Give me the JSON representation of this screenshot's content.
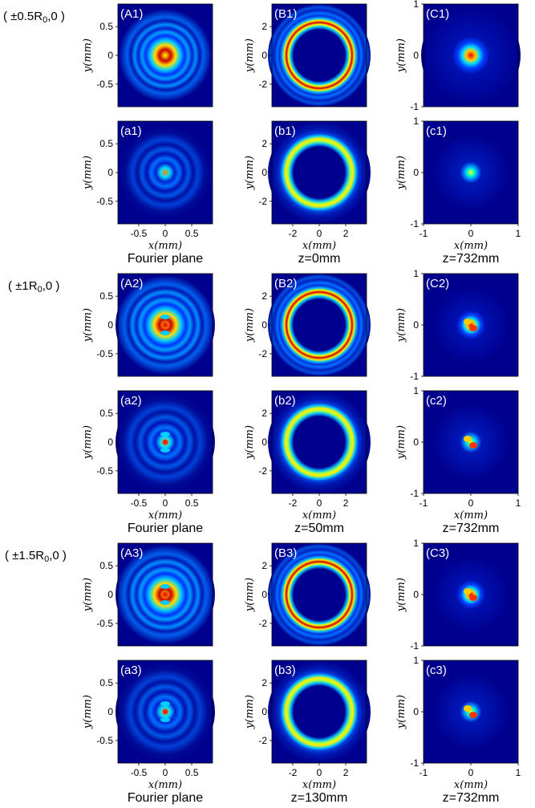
{
  "row_groups": [
    {
      "parameter": "( ±0.5R",
      "parameter_sub": "0",
      "parameter_tail": ",0 )",
      "captions": [
        "Fourier plane",
        "z=0mm",
        "z=732mm"
      ],
      "panels": [
        [
          "(A1)",
          "(B1)",
          "(C1)"
        ],
        [
          "(a1)",
          "(b1)",
          "(c1)"
        ]
      ]
    },
    {
      "parameter": "( ±1R",
      "parameter_sub": "0",
      "parameter_tail": ",0 )",
      "captions": [
        "Fourier plane",
        "z=50mm",
        "z=732mm"
      ],
      "panels": [
        [
          "(A2)",
          "(B2)",
          "(C2)"
        ],
        [
          "(a2)",
          "(b2)",
          "(c2)"
        ]
      ]
    },
    {
      "parameter": "( ±1.5R",
      "parameter_sub": "0",
      "parameter_tail": ",0 )",
      "captions": [
        "Fourier plane",
        "z=130mm",
        "z=732mm"
      ],
      "panels": [
        [
          "(A3)",
          "(B3)",
          "(C3)"
        ],
        [
          "(a3)",
          "(b3)",
          "(c3)"
        ]
      ]
    }
  ],
  "columns": [
    {
      "ytick_labels": [
        "0.5",
        "0",
        "-0.5"
      ],
      "xtick_labels": [
        "-0.5",
        "0",
        "0.5"
      ]
    },
    {
      "ytick_labels": [
        "2",
        "0",
        "-2"
      ],
      "xtick_labels": [
        "-2",
        "0",
        "2"
      ]
    },
    {
      "ytick_labels": [
        "1",
        "0",
        "-1"
      ],
      "xtick_labels": [
        "-1",
        "0",
        "1"
      ]
    }
  ],
  "axis_labels": {
    "y": "y(mm)",
    "x": "x(mm)"
  },
  "colormap": [
    "#00008f",
    "#0000ff",
    "#00ffff",
    "#ffff00",
    "#ff0000",
    "#800000"
  ]
}
